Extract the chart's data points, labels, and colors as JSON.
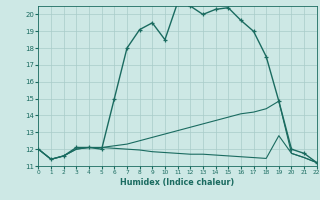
{
  "xlabel": "Humidex (Indice chaleur)",
  "bg_color": "#cde8e5",
  "grid_color": "#a8ccc9",
  "line_color": "#1a6b60",
  "xlim": [
    0,
    22
  ],
  "ylim": [
    11,
    20.5
  ],
  "yticks": [
    11,
    12,
    13,
    14,
    15,
    16,
    17,
    18,
    19,
    20
  ],
  "xticks": [
    0,
    1,
    2,
    3,
    4,
    5,
    6,
    7,
    8,
    9,
    10,
    11,
    12,
    13,
    14,
    15,
    16,
    17,
    18,
    19,
    20,
    21,
    22
  ],
  "curve1_x": [
    0,
    1,
    2,
    3,
    4,
    5,
    6,
    7,
    8,
    9,
    10,
    11,
    12,
    13,
    14,
    15,
    16,
    17,
    18,
    19,
    20,
    21,
    22
  ],
  "curve1_y": [
    12.0,
    11.4,
    11.6,
    12.1,
    12.1,
    12.0,
    15.0,
    18.0,
    19.1,
    19.5,
    18.5,
    20.7,
    20.5,
    20.0,
    20.3,
    20.4,
    19.65,
    19.0,
    17.5,
    14.85,
    12.0,
    11.75,
    11.2
  ],
  "curve2_x": [
    0,
    1,
    2,
    3,
    4,
    5,
    6,
    7,
    8,
    9,
    10,
    11,
    12,
    13,
    14,
    15,
    16,
    17,
    18,
    19,
    20,
    21,
    22
  ],
  "curve2_y": [
    12.0,
    11.4,
    11.6,
    12.0,
    12.1,
    12.1,
    12.2,
    12.3,
    12.5,
    12.7,
    12.9,
    13.1,
    13.3,
    13.5,
    13.7,
    13.9,
    14.1,
    14.2,
    14.4,
    14.85,
    11.75,
    11.5,
    11.2
  ],
  "curve3_x": [
    0,
    1,
    2,
    3,
    4,
    5,
    6,
    7,
    8,
    9,
    10,
    11,
    12,
    13,
    14,
    15,
    16,
    17,
    18,
    19,
    20,
    21,
    22
  ],
  "curve3_y": [
    12.0,
    11.4,
    11.6,
    12.0,
    12.1,
    12.1,
    12.05,
    12.0,
    11.95,
    11.85,
    11.8,
    11.75,
    11.7,
    11.7,
    11.65,
    11.6,
    11.55,
    11.5,
    11.45,
    12.8,
    11.75,
    11.5,
    11.2
  ]
}
